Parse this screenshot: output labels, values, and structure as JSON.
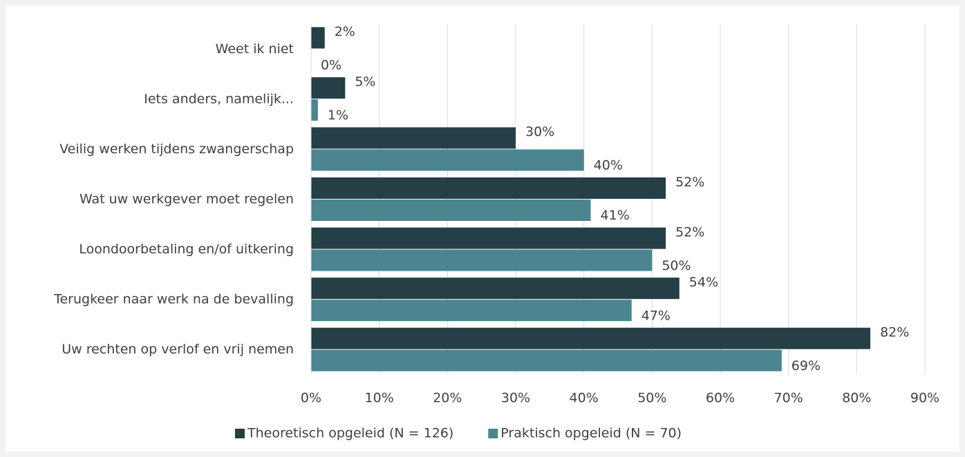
{
  "chart_data": {
    "type": "bar",
    "orientation": "horizontal",
    "categories": [
      "Weet ik niet",
      "Iets anders, namelijk...",
      "Veilig werken tijdens zwangerschap",
      "Wat uw werkgever moet regelen",
      "Loondoorbetaling en/of uitkering",
      "Terugkeer naar werk na de bevalling",
      "Uw rechten op verlof en vrij nemen"
    ],
    "series": [
      {
        "name": "Theoretisch opgeleid (N = 126)",
        "color": "#253f47",
        "values": [
          2,
          5,
          30,
          52,
          52,
          54,
          82
        ],
        "value_labels": [
          "2%",
          "5%",
          "30%",
          "52%",
          "52%",
          "54%",
          "82%"
        ]
      },
      {
        "name": "Praktisch opgeleid (N = 70)",
        "color": "#4a8590",
        "values": [
          0,
          1,
          40,
          41,
          50,
          47,
          69
        ],
        "value_labels": [
          "0%",
          "1%",
          "40%",
          "41%",
          "50%",
          "47%",
          "69%"
        ]
      }
    ],
    "xlim": [
      0,
      90
    ],
    "xticks": [
      {
        "value": 0,
        "label": "0%"
      },
      {
        "value": 10,
        "label": "10%"
      },
      {
        "value": 20,
        "label": "20%"
      },
      {
        "value": 30,
        "label": "30%"
      },
      {
        "value": 40,
        "label": "40%"
      },
      {
        "value": 50,
        "label": "50%"
      },
      {
        "value": 60,
        "label": "60%"
      },
      {
        "value": 70,
        "label": "70%"
      },
      {
        "value": 80,
        "label": "80%"
      },
      {
        "value": 90,
        "label": "90%"
      }
    ],
    "grid": true,
    "legend": "bottom"
  }
}
